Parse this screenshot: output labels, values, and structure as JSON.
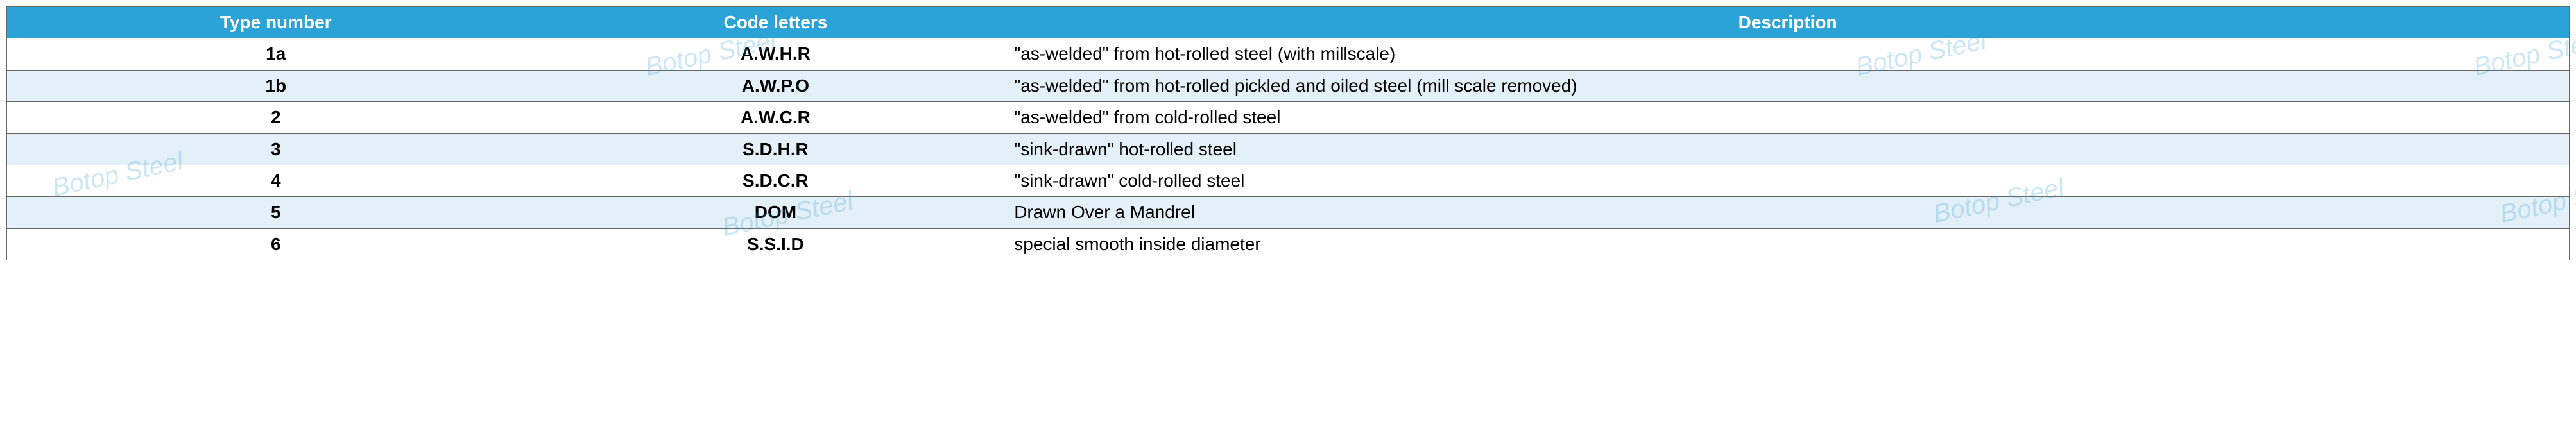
{
  "table": {
    "header_bg": "#2ca3d6",
    "header_color": "#ffffff",
    "row_alt_bg": "#e3f0f7",
    "row_bg": "#ffffff",
    "border_color": "#666666",
    "col_widths": [
      "21%",
      "18%",
      "61%"
    ],
    "columns": [
      "Type number",
      "Code letters",
      "Description"
    ],
    "rows": [
      {
        "type": "1a",
        "code": "A.W.H.R",
        "desc": "\"as-welded\" from hot-rolled steel (with millscale)"
      },
      {
        "type": "1b",
        "code": "A.W.P.O",
        "desc": "\"as-welded\" from hot-rolled pickled and oiled steel (mill scale removed)"
      },
      {
        "type": "2",
        "code": "A.W.C.R",
        "desc": "\"as-welded\" from cold-rolled steel"
      },
      {
        "type": "3",
        "code": "S.D.H.R",
        "desc": "\"sink-drawn\" hot-rolled steel"
      },
      {
        "type": "4",
        "code": "S.D.C.R",
        "desc": "\"sink-drawn\" cold-rolled steel"
      },
      {
        "type": "5",
        "code": "DOM",
        "desc": "Drawn Over a Mandrel"
      },
      {
        "type": "6",
        "code": "S.S.I.D",
        "desc": "special smooth inside diameter"
      }
    ]
  },
  "watermark": {
    "text": "Botop Steel",
    "color": "rgba(46,155,214,0.25)",
    "fontsize": 40
  }
}
